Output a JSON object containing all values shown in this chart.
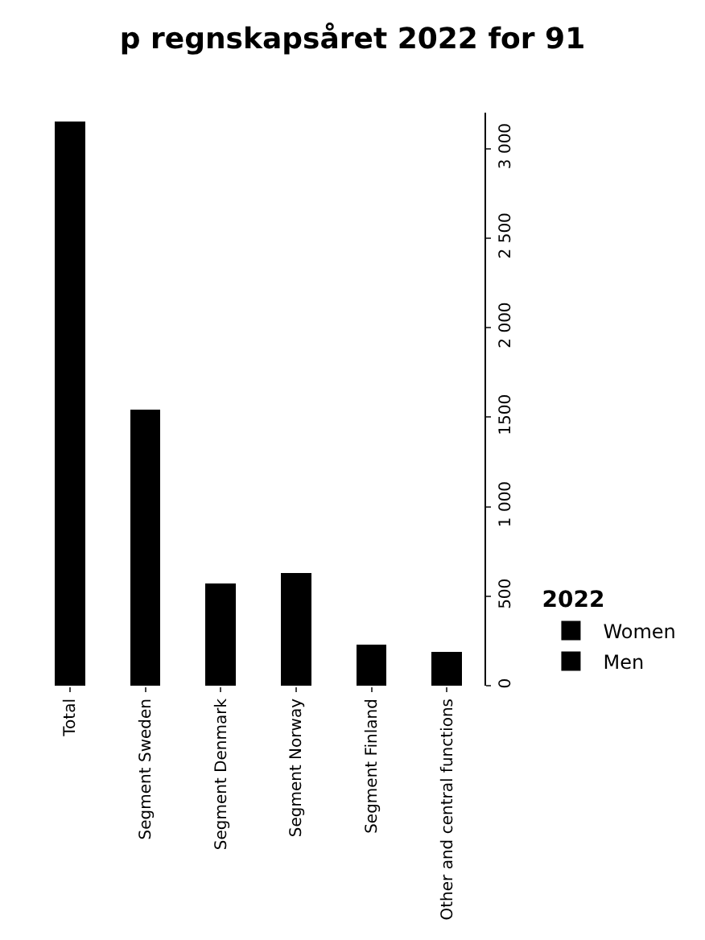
{
  "chart_data": {
    "type": "bar",
    "title": "p regnskapsåret 2022 for 91",
    "legend_title": "2022",
    "categories": [
      "Total",
      "Segment Sweden",
      "Segment Denmark",
      "Segment Norway",
      "Segment Finland",
      "Other and central functions"
    ],
    "series": [
      {
        "name": "Women",
        "color": "#000000",
        "values": [
          3150,
          1540,
          570,
          630,
          230,
          190
        ]
      },
      {
        "name": "Men",
        "color": "#000000",
        "values": [
          null,
          null,
          null,
          null,
          null,
          null
        ]
      }
    ],
    "stacked": true,
    "ylim": [
      0,
      3200
    ],
    "yticks": [
      0,
      500,
      {
        "value": 1000,
        "label": "1 000"
      },
      1500,
      {
        "value": 2000,
        "label": "2 000"
      },
      {
        "value": 2500,
        "label": "2 500"
      },
      {
        "value": 3000,
        "label": "3 000"
      }
    ],
    "legend": "right"
  }
}
